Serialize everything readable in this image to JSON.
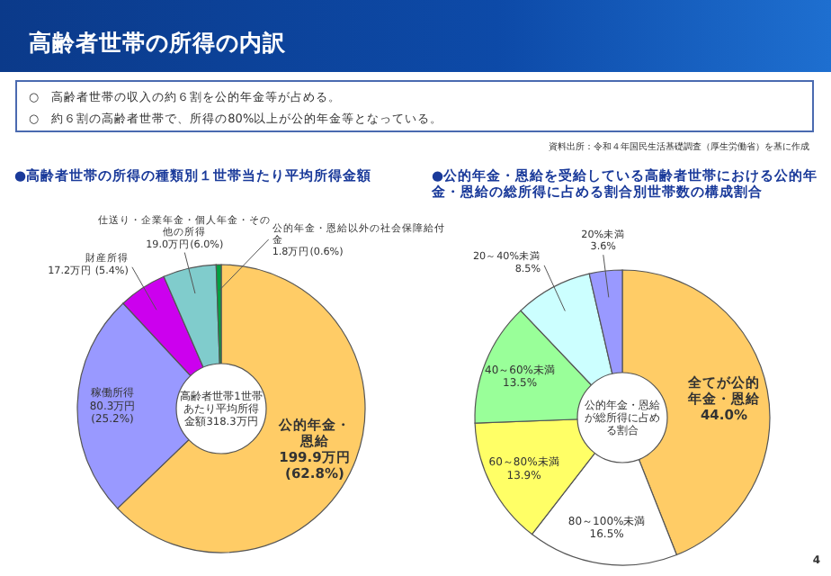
{
  "chart_data": [
    {
      "type": "other",
      "title": "高齢者世帯の所得の内訳",
      "annotations": [
        "○　高齢者世帯の収入の約６割を公的年金等が占める。",
        "○　約６割の高齢者世帯で、所得の80%以上が公的年金等となっている。",
        "資料出所：令和４年国民生活基礎調査（厚生労働省）を基に作成",
        "4"
      ]
    },
    {
      "type": "donut",
      "title": "●高齢者世帯の所得の種類別１世帯当たり平均所得金額",
      "categories": [
        "公的年金・恩給",
        "稼働所得",
        "財産所得",
        "仕送り・企業年金・個人年金・その他の所得",
        "公的年金・恩給以外の社会保障給付金"
      ],
      "values": [
        199.9,
        80.3,
        17.2,
        19.0,
        1.8
      ],
      "value_labels": [
        "199.9万円 (62.8%)",
        "80.3万円 (25.2%)",
        "17.2万円 (5.4%)",
        "19.0万円(6.0%)",
        "1.8万円(0.6%)"
      ],
      "colors": [
        "#ffcc66",
        "#9999ff",
        "#cc00ee",
        "#80cccc",
        "#00a040"
      ],
      "annotations": [
        "高齢者世帯1世帯あたり平均所得金額318.3万円"
      ]
    },
    {
      "type": "donut",
      "title": "●公的年金・恩給を受給している高齢者世帯における公的年金・恩給の総所得に占める割合別世帯数の構成割合",
      "categories": [
        "全てが公的年金・恩給",
        "80～100%未満",
        "60～80%未満",
        "40～60%未満",
        "20～40%未満",
        "20%未満"
      ],
      "values": [
        44.0,
        16.5,
        13.9,
        13.5,
        8.5,
        3.6
      ],
      "value_labels": [
        "44.0%",
        "16.5%",
        "13.9%",
        "13.5%",
        "8.5%",
        "3.6%"
      ],
      "colors": [
        "#ffcc66",
        "#ffffff",
        "#ffff66",
        "#99ff99",
        "#ccffff",
        "#9999ff"
      ],
      "annotations": [
        "公的年金・恩給が総所得に占める割合"
      ]
    }
  ]
}
